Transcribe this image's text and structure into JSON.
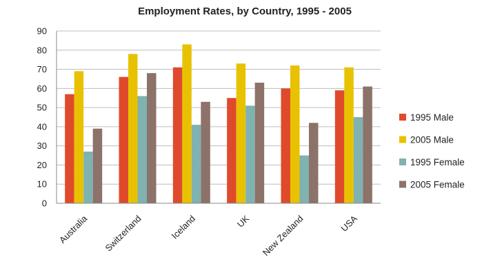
{
  "chart_data": {
    "type": "bar",
    "title": "Employment Rates, by Country, 1995  - 2005",
    "xlabel": "",
    "ylabel": "",
    "categories": [
      "Australia",
      "Switzerland",
      "Iceland",
      "UK",
      "New Zealand",
      "USA"
    ],
    "series": [
      {
        "name": "1995 Male",
        "color": "#e04a2c",
        "values": [
          57,
          66,
          71,
          55,
          60,
          59
        ]
      },
      {
        "name": "2005 Male",
        "color": "#e8c200",
        "values": [
          69,
          78,
          83,
          73,
          72,
          71
        ]
      },
      {
        "name": "1995 Female",
        "color": "#7fb2b0",
        "values": [
          27,
          56,
          41,
          51,
          25,
          45
        ]
      },
      {
        "name": "2005 Female",
        "color": "#8c7268",
        "values": [
          39,
          68,
          53,
          63,
          42,
          61
        ]
      }
    ],
    "ylim": [
      0,
      90
    ],
    "yticks": [
      0,
      10,
      20,
      30,
      40,
      50,
      60,
      70,
      80,
      90
    ],
    "grid": true,
    "legend_position": "right"
  }
}
